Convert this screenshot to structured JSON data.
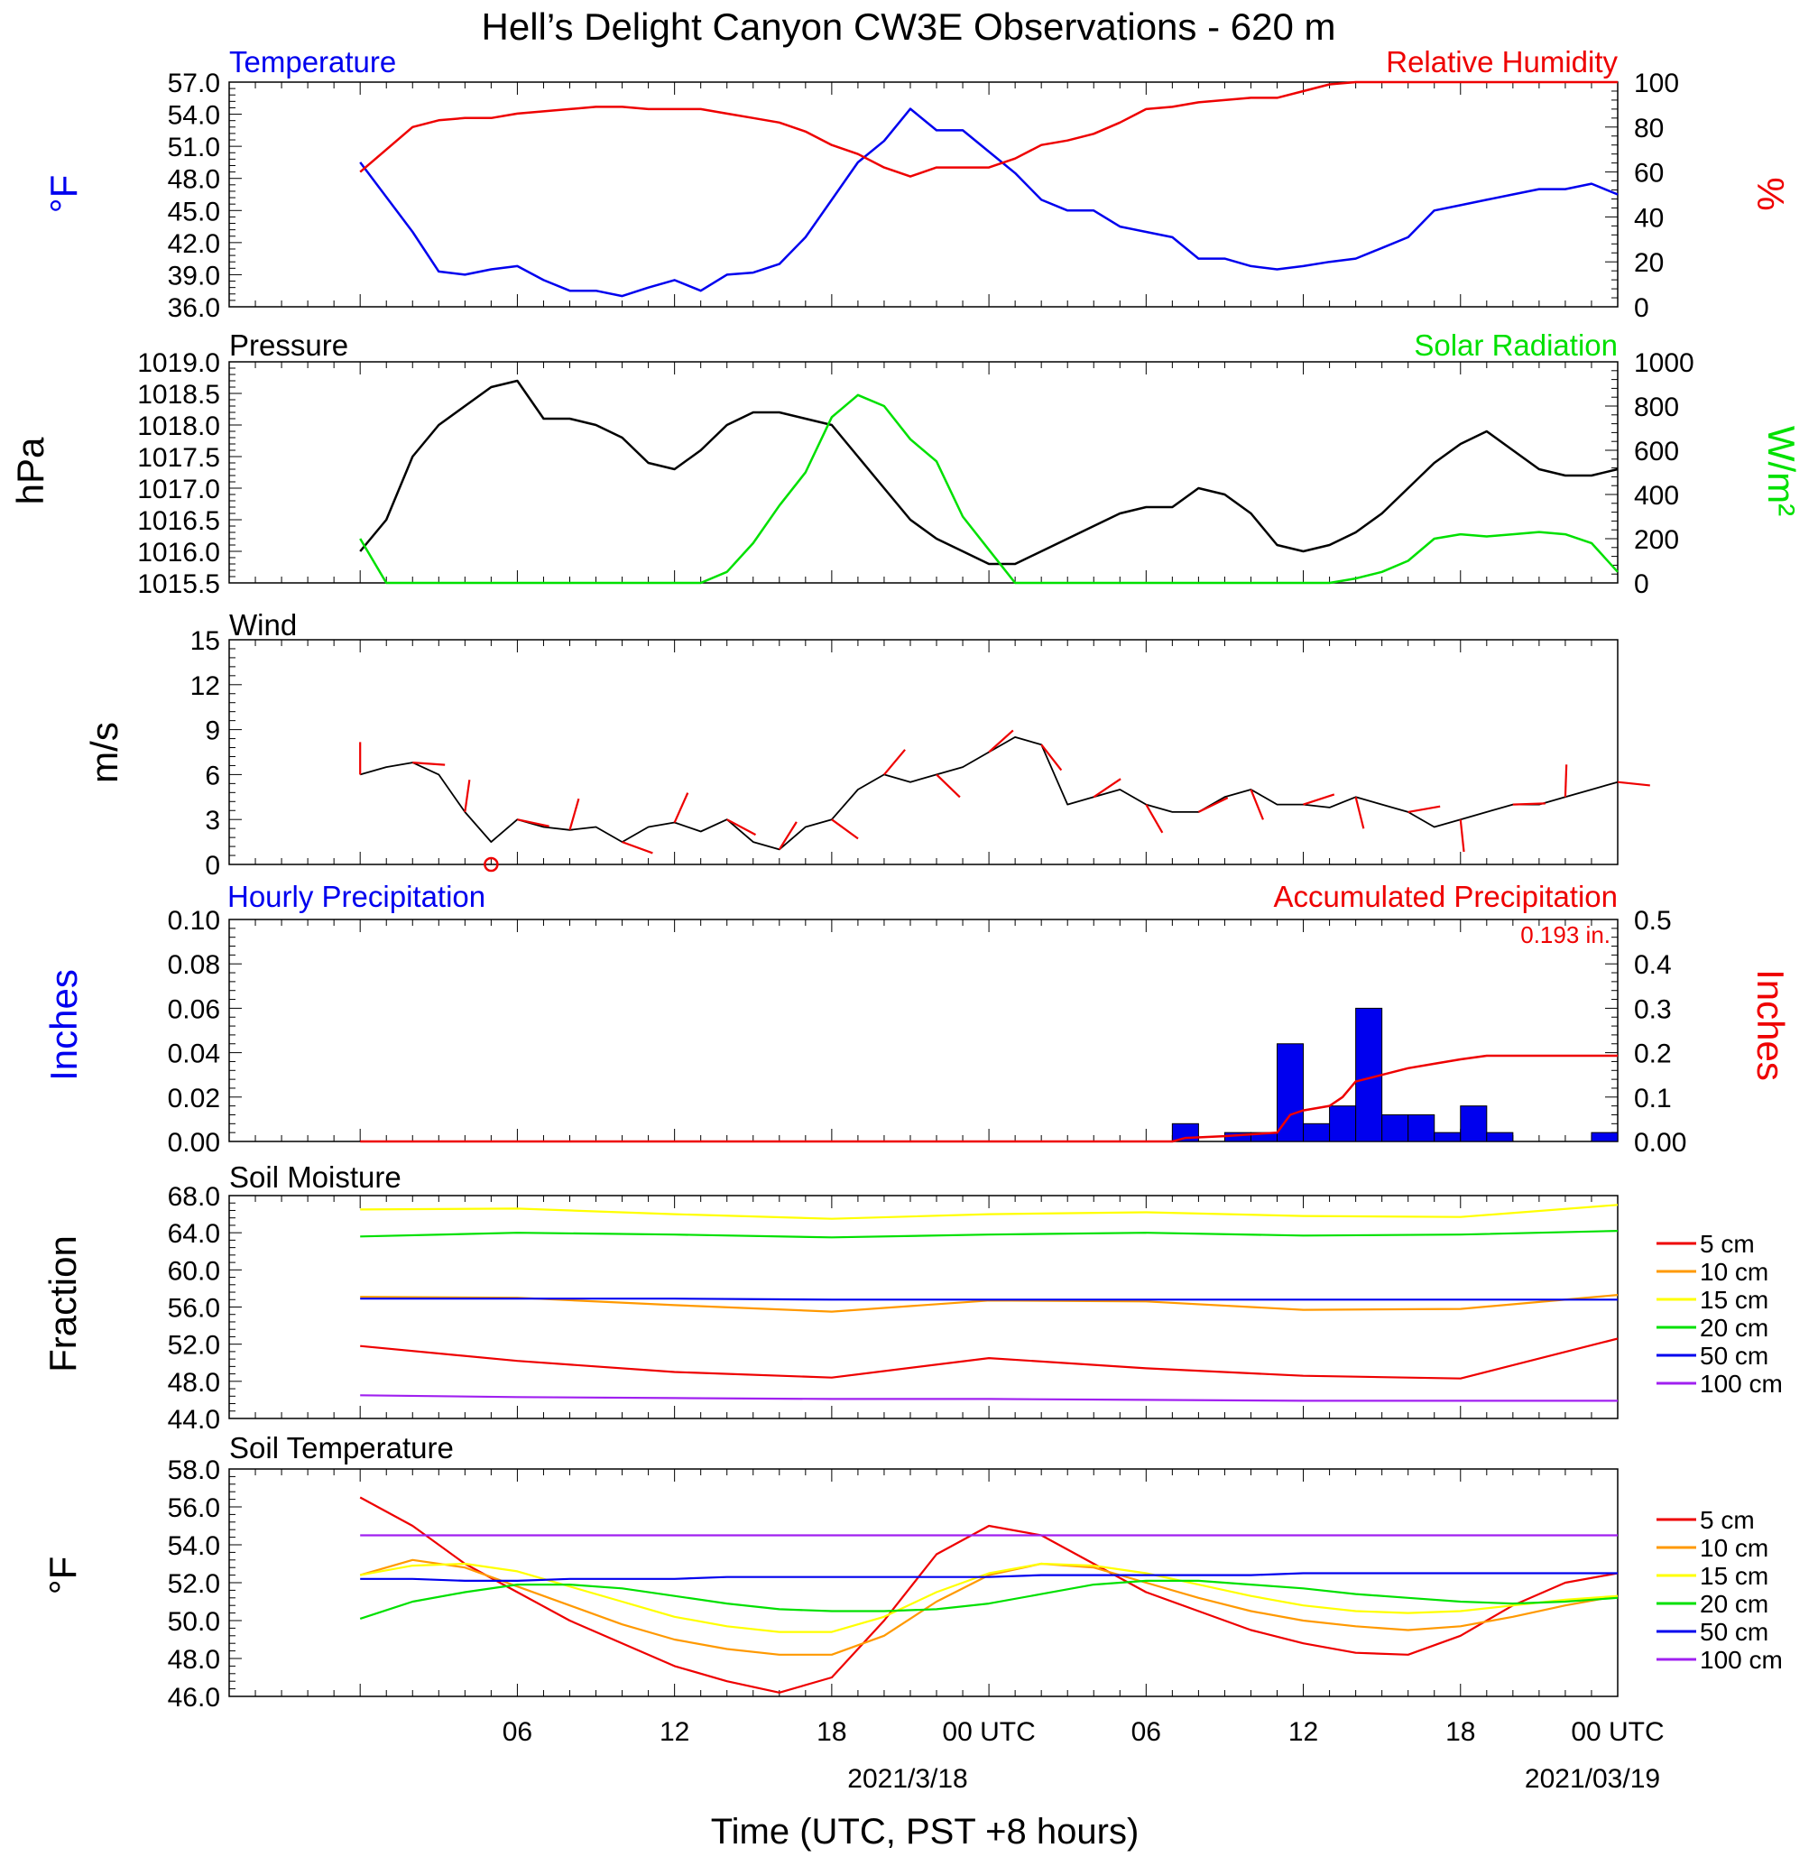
{
  "title": "Hell’s Delight Canyon CW3E Observations - 620 m",
  "x_axis": {
    "label": "Time (UTC, PST +8 hours)",
    "ticks": [
      "06",
      "12",
      "18",
      "00 UTC",
      "06",
      "12",
      "18",
      "00 UTC"
    ],
    "dates": [
      "2021/3/18",
      "2021/03/19"
    ]
  },
  "colors": {
    "blue": "#0000ee",
    "red": "#ee0000",
    "green": "#00e000",
    "black": "#000000",
    "orange": "#ff9900",
    "yellow": "#ffff00",
    "purple": "#a020f0"
  },
  "chart_data": [
    {
      "type": "line",
      "left_title": "Temperature",
      "right_title": "Relative Humidity",
      "ylabel_left": "°F",
      "ylabel_right": "%",
      "y_left_ticks": [
        "57.0",
        "54.0",
        "51.0",
        "48.0",
        "45.0",
        "42.0",
        "39.0",
        "36.0"
      ],
      "y_right_ticks": [
        "100",
        "80",
        "60",
        "40",
        "20",
        "0"
      ],
      "ylim_left": [
        36,
        57
      ],
      "ylim_right": [
        0,
        100
      ],
      "x_hours": [
        0,
        2,
        3,
        4,
        5,
        6,
        7,
        8,
        9,
        10,
        11,
        12,
        13,
        14,
        15,
        16,
        17,
        18,
        19,
        20,
        21,
        22,
        23,
        24,
        25,
        26,
        27,
        28,
        29,
        30,
        31,
        32,
        33,
        34,
        35,
        36,
        37,
        38,
        39,
        40,
        41,
        42,
        43,
        44,
        45,
        46,
        47,
        48
      ],
      "series": [
        {
          "name": "Temperature",
          "axis": "left",
          "color": "blue",
          "values": [
            49.5,
            43.0,
            39.3,
            39.0,
            39.5,
            39.8,
            38.5,
            37.5,
            37.5,
            37.0,
            37.8,
            38.5,
            37.5,
            39.0,
            39.2,
            40.0,
            42.5,
            46.0,
            49.5,
            51.5,
            54.5,
            52.5,
            52.5,
            50.5,
            48.5,
            46.0,
            45.0,
            45.0,
            43.5,
            43.0,
            42.5,
            40.5,
            40.5,
            39.8,
            39.5,
            39.8,
            40.2,
            40.5,
            41.5,
            42.5,
            45.0,
            45.5,
            46.0,
            46.5,
            47.0,
            47.0,
            47.5,
            46.5
          ]
        },
        {
          "name": "Relative Humidity",
          "axis": "right",
          "color": "red",
          "values": [
            60,
            80,
            83,
            84,
            84,
            86,
            87,
            88,
            89,
            89,
            88,
            88,
            88,
            86,
            84,
            82,
            78,
            72,
            68,
            62,
            58,
            62,
            62,
            62,
            66,
            72,
            74,
            77,
            82,
            88,
            89,
            91,
            92,
            93,
            93,
            96,
            99,
            100,
            100,
            100,
            100,
            100,
            100,
            100,
            100,
            100,
            100,
            100
          ]
        }
      ]
    },
    {
      "type": "line",
      "left_title": "Pressure",
      "right_title": "Solar Radiation",
      "ylabel_left": "hPa",
      "ylabel_right": "W/m²",
      "y_left_ticks": [
        "1019.0",
        "1018.5",
        "1018.0",
        "1017.5",
        "1017.0",
        "1016.5",
        "1016.0",
        "1015.5"
      ],
      "y_right_ticks": [
        "1000",
        "800",
        "600",
        "400",
        "200",
        "0"
      ],
      "ylim_left": [
        1015.5,
        1019.0
      ],
      "ylim_right": [
        0,
        1000
      ],
      "x_hours": [
        0,
        1,
        2,
        3,
        4,
        5,
        6,
        7,
        8,
        9,
        10,
        11,
        12,
        13,
        14,
        15,
        16,
        17,
        18,
        19,
        20,
        21,
        22,
        23,
        24,
        25,
        26,
        27,
        28,
        29,
        30,
        31,
        32,
        33,
        34,
        35,
        36,
        37,
        38,
        39,
        40,
        41,
        42,
        43,
        44,
        45,
        46,
        47,
        48
      ],
      "series": [
        {
          "name": "Pressure",
          "axis": "left",
          "color": "black",
          "values": [
            1016.0,
            1016.5,
            1017.5,
            1018.0,
            1018.3,
            1018.6,
            1018.7,
            1018.1,
            1018.1,
            1018.0,
            1017.8,
            1017.4,
            1017.3,
            1017.6,
            1018.0,
            1018.2,
            1018.2,
            1018.1,
            1018.0,
            1017.5,
            1017.0,
            1016.5,
            1016.2,
            1016.0,
            1015.8,
            1015.8,
            1016.0,
            1016.2,
            1016.4,
            1016.6,
            1016.7,
            1016.7,
            1017.0,
            1016.9,
            1016.6,
            1016.1,
            1016.0,
            1016.1,
            1016.3,
            1016.6,
            1017.0,
            1017.4,
            1017.7,
            1017.9,
            1017.6,
            1017.3,
            1017.2,
            1017.2,
            1017.3
          ]
        },
        {
          "name": "Solar Radiation",
          "axis": "right",
          "color": "green",
          "values": [
            200,
            0,
            0,
            0,
            0,
            0,
            0,
            0,
            0,
            0,
            0,
            0,
            0,
            0,
            50,
            180,
            350,
            500,
            750,
            850,
            800,
            650,
            550,
            300,
            150,
            0,
            0,
            0,
            0,
            0,
            0,
            0,
            0,
            0,
            0,
            0,
            0,
            0,
            20,
            50,
            100,
            200,
            220,
            210,
            220,
            230,
            220,
            180,
            50
          ]
        }
      ]
    },
    {
      "type": "line",
      "left_title": "Wind",
      "ylabel_left": "m/s",
      "y_left_ticks": [
        "15",
        "12",
        "9",
        "6",
        "3",
        "0"
      ],
      "ylim_left": [
        0,
        15
      ],
      "x_hours": [
        0,
        1,
        2,
        3,
        4,
        5,
        6,
        7,
        8,
        9,
        10,
        11,
        12,
        13,
        14,
        15,
        16,
        17,
        18,
        19,
        20,
        21,
        22,
        23,
        24,
        25,
        26,
        27,
        28,
        29,
        30,
        31,
        32,
        33,
        34,
        35,
        36,
        37,
        38,
        39,
        40,
        41,
        42,
        43,
        44,
        45,
        46,
        47,
        48
      ],
      "series": [
        {
          "name": "Wind speed",
          "axis": "left",
          "color": "black",
          "values": [
            6.0,
            6.5,
            6.8,
            6.0,
            3.5,
            1.5,
            3.0,
            2.5,
            2.3,
            2.5,
            1.5,
            2.5,
            2.8,
            2.2,
            3.0,
            1.5,
            1.0,
            2.5,
            3.0,
            5.0,
            6.0,
            5.5,
            6.0,
            6.5,
            7.5,
            8.5,
            8.0,
            4.0,
            4.5,
            5.0,
            4.0,
            3.5,
            3.5,
            4.5,
            5.0,
            4.0,
            4.0,
            3.8,
            4.5,
            4.0,
            3.5,
            2.5,
            3.0,
            3.5,
            4.0,
            4.0,
            4.5,
            5.0,
            5.5
          ]
        }
      ],
      "annotations": [
        "wind barbs (red)",
        "calm circle at ~05 UTC"
      ]
    },
    {
      "type": "bar",
      "left_title": "Hourly Precipitation",
      "right_title": "Accumulated Precipitation",
      "total_label": "0.193 in.",
      "ylabel_left": "Inches",
      "ylabel_right": "Inches",
      "y_left_ticks": [
        "0.10",
        "0.08",
        "0.06",
        "0.04",
        "0.02",
        "0.00"
      ],
      "y_right_ticks": [
        "0.5",
        "0.4",
        "0.3",
        "0.2",
        "0.1",
        "0.00"
      ],
      "ylim_left": [
        0,
        0.1
      ],
      "ylim_right": [
        0,
        0.5
      ],
      "bars": {
        "x_hours": [
          31,
          33,
          34,
          35,
          36,
          37,
          38,
          39,
          40,
          41,
          42,
          43,
          47
        ],
        "values": [
          0.008,
          0.004,
          0.004,
          0.044,
          0.008,
          0.016,
          0.06,
          0.012,
          0.012,
          0.004,
          0.016,
          0.004,
          0.004
        ]
      },
      "accumulated": {
        "x_hours": [
          0,
          31,
          31.5,
          33,
          34,
          35,
          35.5,
          36,
          37,
          37.5,
          38,
          39,
          40,
          41,
          42,
          43,
          48
        ],
        "values": [
          0,
          0,
          0.008,
          0.012,
          0.016,
          0.02,
          0.06,
          0.07,
          0.08,
          0.1,
          0.135,
          0.15,
          0.165,
          0.175,
          0.185,
          0.193,
          0.193
        ]
      }
    },
    {
      "type": "line",
      "left_title": "Soil Moisture",
      "ylabel_left": "Fraction",
      "y_left_ticks": [
        "68.0",
        "64.0",
        "60.0",
        "56.0",
        "52.0",
        "48.0",
        "44.0"
      ],
      "ylim_left": [
        44,
        68
      ],
      "x_hours": [
        0,
        6,
        12,
        18,
        24,
        30,
        36,
        42,
        48
      ],
      "legend": [
        "5 cm",
        "10 cm",
        "15 cm",
        "20 cm",
        "50 cm",
        "100 cm"
      ],
      "series": [
        {
          "name": "5 cm",
          "color": "red",
          "values": [
            51.8,
            50.2,
            49.0,
            48.4,
            50.5,
            49.4,
            48.6,
            48.3,
            52.6
          ]
        },
        {
          "name": "10 cm",
          "color": "orange",
          "values": [
            57.1,
            57.0,
            56.2,
            55.5,
            56.7,
            56.6,
            55.7,
            55.8,
            57.3
          ]
        },
        {
          "name": "15 cm",
          "color": "yellow",
          "values": [
            66.5,
            66.6,
            66.0,
            65.5,
            66.0,
            66.2,
            65.8,
            65.7,
            67.0
          ]
        },
        {
          "name": "20 cm",
          "color": "green",
          "values": [
            63.6,
            64.0,
            63.8,
            63.5,
            63.8,
            64.0,
            63.7,
            63.8,
            64.2
          ]
        },
        {
          "name": "50 cm",
          "color": "blue",
          "values": [
            56.9,
            56.9,
            56.9,
            56.8,
            56.8,
            56.8,
            56.8,
            56.8,
            56.8
          ]
        },
        {
          "name": "100 cm",
          "color": "purple",
          "values": [
            46.5,
            46.3,
            46.2,
            46.1,
            46.1,
            46.0,
            45.9,
            45.9,
            45.9
          ]
        }
      ]
    },
    {
      "type": "line",
      "left_title": "Soil Temperature",
      "ylabel_left": "°F",
      "y_left_ticks": [
        "58.0",
        "56.0",
        "54.0",
        "52.0",
        "50.0",
        "48.0",
        "46.0"
      ],
      "ylim_left": [
        46,
        58
      ],
      "x_hours": [
        0,
        2,
        4,
        6,
        8,
        10,
        12,
        14,
        16,
        18,
        20,
        22,
        24,
        26,
        28,
        30,
        32,
        34,
        36,
        38,
        40,
        42,
        44,
        46,
        48
      ],
      "legend": [
        "5 cm",
        "10 cm",
        "15 cm",
        "20 cm",
        "50 cm",
        "100 cm"
      ],
      "series": [
        {
          "name": "5 cm",
          "color": "red",
          "values": [
            56.5,
            55.0,
            53.0,
            51.5,
            50.0,
            48.8,
            47.6,
            46.8,
            46.2,
            47.0,
            50.0,
            53.5,
            55.0,
            54.5,
            53.0,
            51.5,
            50.5,
            49.5,
            48.8,
            48.3,
            48.2,
            49.2,
            50.8,
            52.0,
            52.5
          ]
        },
        {
          "name": "10 cm",
          "color": "orange",
          "values": [
            52.4,
            53.2,
            52.8,
            51.8,
            50.8,
            49.8,
            49.0,
            48.5,
            48.2,
            48.2,
            49.2,
            51.0,
            52.4,
            53.0,
            52.8,
            52.0,
            51.2,
            50.5,
            50.0,
            49.7,
            49.5,
            49.7,
            50.2,
            50.8,
            51.3
          ]
        },
        {
          "name": "15 cm",
          "color": "yellow",
          "values": [
            52.4,
            52.9,
            53.0,
            52.6,
            51.8,
            51.0,
            50.2,
            49.7,
            49.4,
            49.4,
            50.2,
            51.5,
            52.5,
            53.0,
            52.9,
            52.5,
            51.9,
            51.3,
            50.8,
            50.5,
            50.4,
            50.5,
            50.8,
            51.1,
            51.3
          ]
        },
        {
          "name": "20 cm",
          "color": "green",
          "values": [
            50.1,
            51.0,
            51.5,
            51.9,
            51.9,
            51.7,
            51.3,
            50.9,
            50.6,
            50.5,
            50.5,
            50.6,
            50.9,
            51.4,
            51.9,
            52.1,
            52.1,
            51.9,
            51.7,
            51.4,
            51.2,
            51.0,
            50.9,
            51.0,
            51.2
          ]
        },
        {
          "name": "50 cm",
          "color": "blue",
          "values": [
            52.2,
            52.2,
            52.1,
            52.1,
            52.2,
            52.2,
            52.2,
            52.3,
            52.3,
            52.3,
            52.3,
            52.3,
            52.3,
            52.4,
            52.4,
            52.4,
            52.4,
            52.4,
            52.5,
            52.5,
            52.5,
            52.5,
            52.5,
            52.5,
            52.5
          ]
        },
        {
          "name": "100 cm",
          "color": "purple",
          "values": [
            54.5,
            54.5,
            54.5,
            54.5,
            54.5,
            54.5,
            54.5,
            54.5,
            54.5,
            54.5,
            54.5,
            54.5,
            54.5,
            54.5,
            54.5,
            54.5,
            54.5,
            54.5,
            54.5,
            54.5,
            54.5,
            54.5,
            54.5,
            54.5,
            54.5
          ]
        }
      ]
    }
  ]
}
